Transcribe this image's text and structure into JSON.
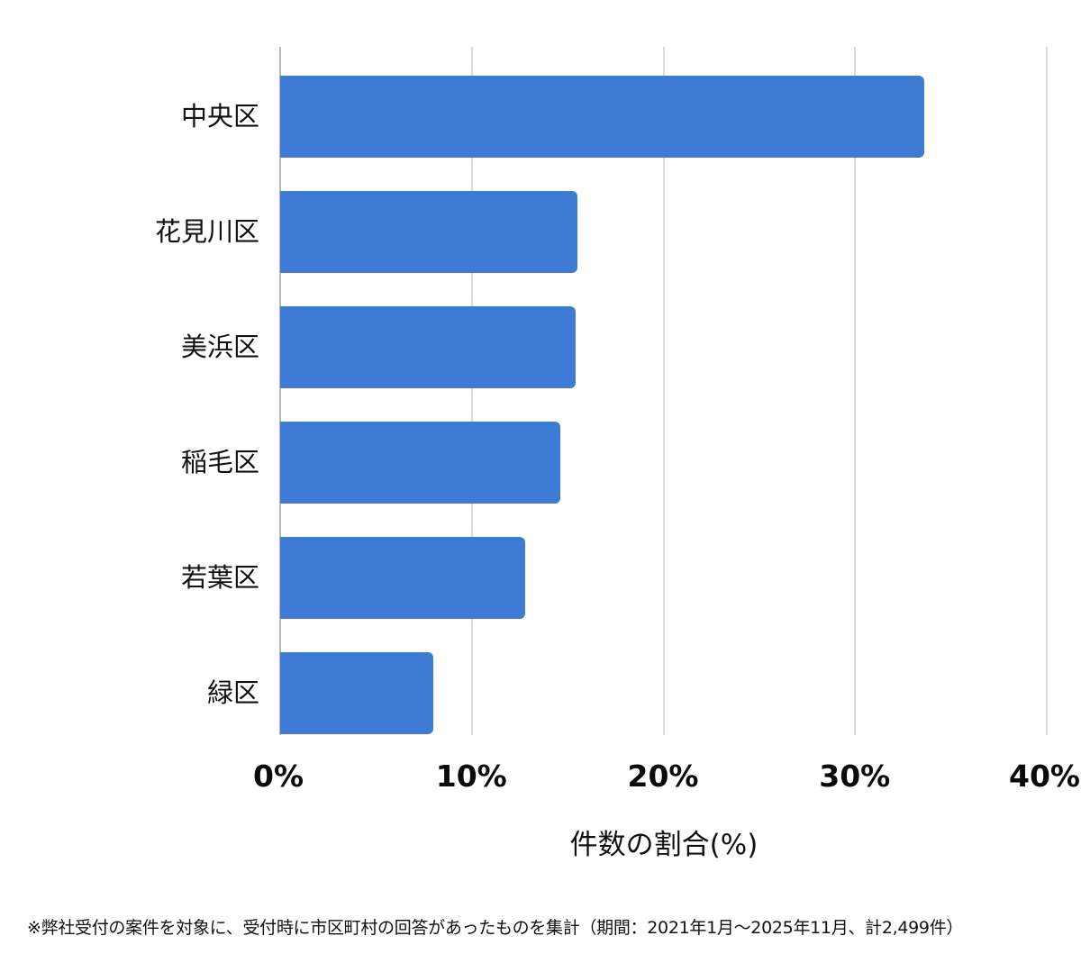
{
  "chart_data": {
    "type": "bar",
    "orientation": "horizontal",
    "title": "",
    "categories": [
      "中央区",
      "花見川区",
      "美浜区",
      "稲毛区",
      "若葉区",
      "緑区"
    ],
    "values": [
      33.6,
      15.5,
      15.4,
      14.6,
      12.8,
      8.0
    ],
    "xlabel": "件数の割合(%)",
    "ylabel": "",
    "xlim": [
      0,
      40
    ],
    "x_ticks": [
      "0%",
      "10%",
      "20%",
      "30%",
      "40%"
    ],
    "grid": true,
    "legend": null,
    "bar_color": "#3d7bd4",
    "footnote": "※弊社受付の案件を対象に、受付時に市区町村の回答があったものを集計（期間：2021年1月～2025年11月、計2,499件）"
  },
  "axis": {
    "ticks": [
      "0%",
      "10%",
      "20%",
      "30%",
      "40%"
    ],
    "title": "件数の割合(%)"
  },
  "footnote": "※弊社受付の案件を対象に、受付時に市区町村の回答があったものを集計（期間：2021年1月～2025年11月、計2,499件）"
}
